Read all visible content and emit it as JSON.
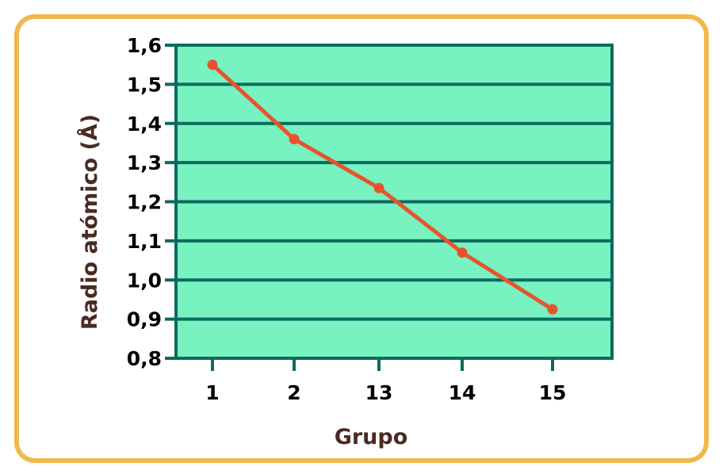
{
  "colors": {
    "plot_background": "#77f2c0",
    "grid_and_frame": "#0d6b5e",
    "line": "#e8532e",
    "border": "#f0b84f",
    "axis_title": "#4a2a22"
  },
  "chart_data": {
    "type": "line",
    "title": "",
    "xlabel": "Grupo",
    "ylabel": "Radio atómico (Å)",
    "x_tick_labels": [
      "1",
      "2",
      "13",
      "14",
      "15"
    ],
    "y_tick_labels": [
      "0,8",
      "0,9",
      "1,0",
      "1,1",
      "1,2",
      "1,3",
      "1,4",
      "1,5",
      "1,6"
    ],
    "ylim": [
      0.8,
      1.6
    ],
    "grid": true,
    "series": [
      {
        "x": [
          "1",
          "2",
          "13",
          "14",
          "15"
        ],
        "values": [
          1.55,
          1.36,
          1.235,
          1.07,
          0.925
        ]
      }
    ]
  }
}
